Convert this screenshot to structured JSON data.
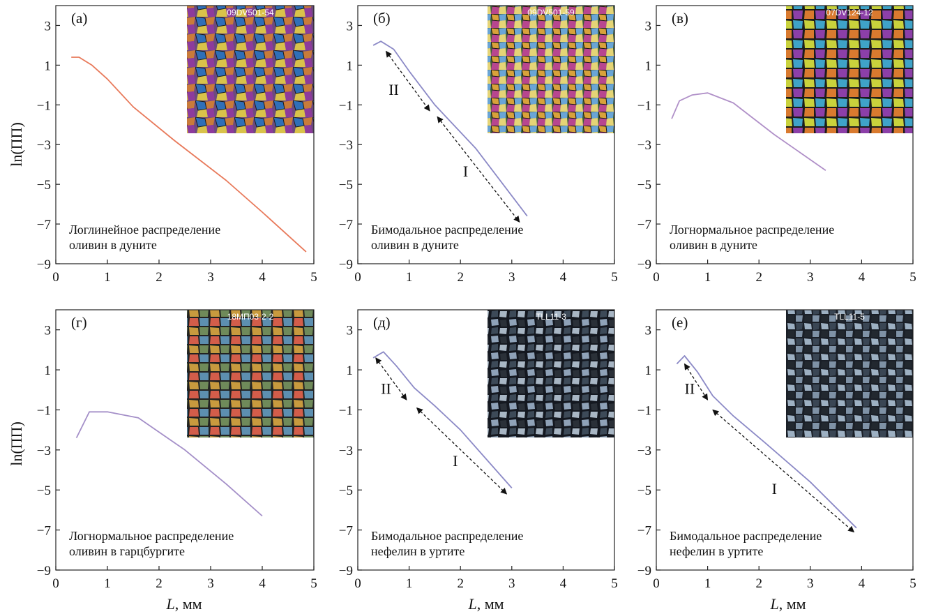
{
  "figure": {
    "y_axis_label": "ln(ПП)",
    "x_axis_label_italic": "L",
    "x_axis_label_unit": ", мм"
  },
  "chart_data": [
    {
      "type": "line",
      "panel": "(а)",
      "sample": "09DV501-54",
      "caption": [
        "Логлинейное распределение",
        "оливин в дуните"
      ],
      "xlim": [
        0,
        5
      ],
      "ylim": [
        -9,
        4
      ],
      "xticks": [
        0,
        1,
        2,
        3,
        4,
        5
      ],
      "yticks": [
        3,
        1,
        -1,
        -3,
        -5,
        -7,
        -9
      ],
      "ytick_labels": [
        "3",
        "1",
        "−1",
        "−3",
        "−5",
        "−7",
        "−9"
      ],
      "line_color": "#e8795a",
      "x": [
        0.3,
        0.45,
        0.7,
        1.0,
        1.5,
        2.3,
        3.3,
        4.0,
        4.85
      ],
      "y": [
        1.4,
        1.4,
        1.0,
        0.3,
        -1.1,
        -2.8,
        -4.8,
        -6.4,
        -8.4
      ],
      "arrows": [],
      "region_labels": []
    },
    {
      "type": "line",
      "panel": "(б)",
      "sample": "09DV501-59",
      "caption": [
        "Бимодальное распределение",
        "оливин в дуните"
      ],
      "xlim": [
        0,
        5
      ],
      "ylim": [
        -9,
        4
      ],
      "xticks": [
        0,
        1,
        2,
        3,
        4,
        5
      ],
      "yticks": [
        3,
        1,
        -1,
        -3,
        -5,
        -7,
        -9
      ],
      "ytick_labels": [
        "3",
        "1",
        "−1",
        "−3",
        "−5",
        "−7",
        "−9"
      ],
      "line_color": "#8b89c6",
      "x": [
        0.3,
        0.45,
        0.7,
        1.0,
        1.5,
        2.3,
        3.3
      ],
      "y": [
        2.0,
        2.2,
        1.8,
        0.7,
        -1.0,
        -3.2,
        -6.6
      ],
      "arrows": [
        {
          "from": [
            0.55,
            1.7
          ],
          "to": [
            1.4,
            -1.3
          ]
        },
        {
          "from": [
            1.55,
            -1.6
          ],
          "to": [
            3.15,
            -6.9
          ]
        }
      ],
      "region_labels": [
        {
          "text": "II",
          "x": 0.7,
          "y": -0.5
        },
        {
          "text": "I",
          "x": 2.1,
          "y": -4.6
        }
      ]
    },
    {
      "type": "line",
      "panel": "(в)",
      "sample": "07DV124-12",
      "caption": [
        "Логнормальное распределение",
        "оливин в дуните"
      ],
      "xlim": [
        0,
        5
      ],
      "ylim": [
        -9,
        4
      ],
      "xticks": [
        0,
        1,
        2,
        3,
        4,
        5
      ],
      "yticks": [
        3,
        1,
        -1,
        -3,
        -5,
        -7,
        -9
      ],
      "ytick_labels": [
        "3",
        "1",
        "−1",
        "−3",
        "−5",
        "−7",
        "−9"
      ],
      "line_color": "#b090c8",
      "x": [
        0.3,
        0.45,
        0.7,
        1.0,
        1.5,
        2.3,
        3.3
      ],
      "y": [
        -1.7,
        -0.8,
        -0.5,
        -0.4,
        -0.9,
        -2.5,
        -4.3
      ],
      "arrows": [],
      "region_labels": []
    },
    {
      "type": "line",
      "panel": "(г)",
      "sample": "18МП03-2-2",
      "caption": [
        "Логнормальное распределение",
        "оливин в гарцбургите"
      ],
      "xlim": [
        0,
        5
      ],
      "ylim": [
        -9,
        4
      ],
      "xticks": [
        0,
        1,
        2,
        3,
        4,
        5
      ],
      "yticks": [
        3,
        1,
        -1,
        -3,
        -5,
        -7,
        -9
      ],
      "ytick_labels": [
        "3",
        "1",
        "−1",
        "−3",
        "−5",
        "−7",
        "−9"
      ],
      "line_color": "#a48fc8",
      "x": [
        0.4,
        0.65,
        1.0,
        1.6,
        2.5,
        3.3,
        4.0
      ],
      "y": [
        -2.4,
        -1.1,
        -1.1,
        -1.4,
        -3.0,
        -4.7,
        -6.3
      ],
      "arrows": [],
      "region_labels": []
    },
    {
      "type": "line",
      "panel": "(д)",
      "sample": "TLL11-3",
      "caption": [
        "Бимодальное распределение",
        "нефелин в уртите"
      ],
      "xlim": [
        0,
        5
      ],
      "ylim": [
        -9,
        4
      ],
      "xticks": [
        0,
        1,
        2,
        3,
        4,
        5
      ],
      "yticks": [
        3,
        1,
        -1,
        -3,
        -5,
        -7,
        -9
      ],
      "ytick_labels": [
        "3",
        "1",
        "−1",
        "−3",
        "−5",
        "−7",
        "−9"
      ],
      "line_color": "#8b89c6",
      "x": [
        0.3,
        0.5,
        0.75,
        1.1,
        1.5,
        2.0,
        3.0
      ],
      "y": [
        1.6,
        1.9,
        1.2,
        0.1,
        -0.8,
        -2.0,
        -4.9
      ],
      "arrows": [
        {
          "from": [
            0.35,
            1.6
          ],
          "to": [
            0.95,
            -0.5
          ]
        },
        {
          "from": [
            1.15,
            -0.9
          ],
          "to": [
            2.9,
            -5.2
          ]
        }
      ],
      "region_labels": [
        {
          "text": "II",
          "x": 0.55,
          "y": -0.2
        },
        {
          "text": "I",
          "x": 1.9,
          "y": -3.8
        }
      ]
    },
    {
      "type": "line",
      "panel": "(е)",
      "sample": "TLL11-5",
      "caption": [
        "Бимодальное распределение",
        "нефелин в уртите"
      ],
      "xlim": [
        0,
        5
      ],
      "ylim": [
        -9,
        4
      ],
      "xticks": [
        0,
        1,
        2,
        3,
        4,
        5
      ],
      "yticks": [
        3,
        1,
        -1,
        -3,
        -5,
        -7,
        -9
      ],
      "ytick_labels": [
        "3",
        "1",
        "−1",
        "−3",
        "−5",
        "−7",
        "−9"
      ],
      "line_color": "#8b89c6",
      "x": [
        0.4,
        0.55,
        0.8,
        1.1,
        1.5,
        2.1,
        3.0,
        3.9
      ],
      "y": [
        1.3,
        1.7,
        0.9,
        -0.3,
        -1.3,
        -2.6,
        -4.6,
        -6.9
      ],
      "arrows": [
        {
          "from": [
            0.55,
            1.3
          ],
          "to": [
            1.0,
            -0.5
          ]
        },
        {
          "from": [
            1.1,
            -1.0
          ],
          "to": [
            3.85,
            -7.1
          ]
        }
      ],
      "region_labels": [
        {
          "text": "II",
          "x": 0.65,
          "y": -0.2
        },
        {
          "text": "I",
          "x": 2.3,
          "y": -5.2
        }
      ]
    }
  ]
}
